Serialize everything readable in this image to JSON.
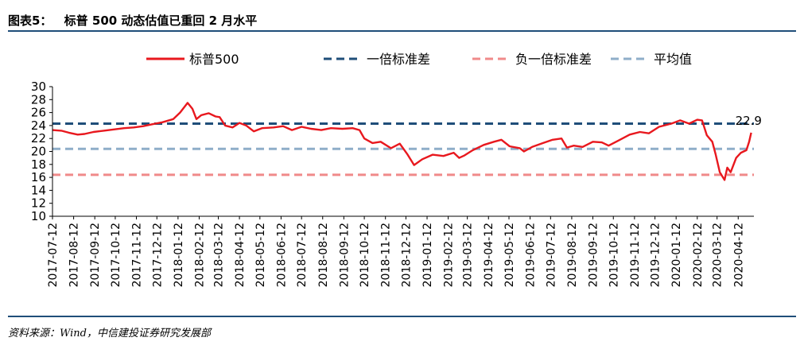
{
  "header": {
    "title_prefix": "图表5：",
    "title_text": "标普 500 动态估值已重回 2 月水平"
  },
  "footer": {
    "source": "资料来源：Wind，中信建投证券研究发展部"
  },
  "colors": {
    "rule": "#1f4e79",
    "sp500": "#e8181e",
    "plus_std": "#1f4e79",
    "minus_std": "#f08a8a",
    "mean": "#8faec9",
    "axis": "#000000"
  },
  "chart_data": {
    "type": "line",
    "legend_position": "top",
    "grid": false,
    "ylim": [
      10,
      30
    ],
    "yticks": [
      10,
      12,
      14,
      16,
      18,
      20,
      22,
      24,
      26,
      28,
      30
    ],
    "xlim": [
      "2017-07-12",
      "2020-05-05"
    ],
    "x_tick_labels": [
      "2017-07-12",
      "2017-08-12",
      "2017-09-12",
      "2017-10-12",
      "2017-11-12",
      "2017-12-12",
      "2018-01-12",
      "2018-02-12",
      "2018-03-12",
      "2018-04-12",
      "2018-05-12",
      "2018-06-12",
      "2018-07-12",
      "2018-08-12",
      "2018-09-12",
      "2018-10-12",
      "2018-11-12",
      "2018-12-12",
      "2019-01-12",
      "2019-02-12",
      "2019-03-12",
      "2019-04-12",
      "2019-05-12",
      "2019-06-12",
      "2019-07-12",
      "2019-08-12",
      "2019-09-12",
      "2019-10-12",
      "2019-11-12",
      "2019-12-12",
      "2020-01-12",
      "2020-02-12",
      "2020-03-12",
      "2020-04-12"
    ],
    "series": [
      {
        "name": "标普500",
        "style": "solid",
        "points": [
          [
            "2017-07-12",
            23.3
          ],
          [
            "2017-07-25",
            23.2
          ],
          [
            "2017-08-05",
            22.9
          ],
          [
            "2017-08-18",
            22.6
          ],
          [
            "2017-08-28",
            22.7
          ],
          [
            "2017-09-10",
            23.0
          ],
          [
            "2017-09-25",
            23.2
          ],
          [
            "2017-10-10",
            23.4
          ],
          [
            "2017-10-25",
            23.6
          ],
          [
            "2017-11-08",
            23.7
          ],
          [
            "2017-11-22",
            23.9
          ],
          [
            "2017-12-05",
            24.2
          ],
          [
            "2017-12-20",
            24.5
          ],
          [
            "2018-01-05",
            25.0
          ],
          [
            "2018-01-15",
            26.0
          ],
          [
            "2018-01-26",
            27.5
          ],
          [
            "2018-02-02",
            26.6
          ],
          [
            "2018-02-08",
            25.0
          ],
          [
            "2018-02-15",
            25.6
          ],
          [
            "2018-02-26",
            25.9
          ],
          [
            "2018-03-08",
            25.4
          ],
          [
            "2018-03-14",
            25.3
          ],
          [
            "2018-03-22",
            24.0
          ],
          [
            "2018-04-02",
            23.7
          ],
          [
            "2018-04-12",
            24.4
          ],
          [
            "2018-04-22",
            24.0
          ],
          [
            "2018-05-03",
            23.1
          ],
          [
            "2018-05-15",
            23.6
          ],
          [
            "2018-06-01",
            23.7
          ],
          [
            "2018-06-15",
            23.9
          ],
          [
            "2018-06-28",
            23.3
          ],
          [
            "2018-07-12",
            23.8
          ],
          [
            "2018-07-26",
            23.5
          ],
          [
            "2018-08-10",
            23.3
          ],
          [
            "2018-08-24",
            23.6
          ],
          [
            "2018-09-10",
            23.5
          ],
          [
            "2018-09-25",
            23.6
          ],
          [
            "2018-10-05",
            23.3
          ],
          [
            "2018-10-12",
            22.0
          ],
          [
            "2018-10-24",
            21.3
          ],
          [
            "2018-11-05",
            21.5
          ],
          [
            "2018-11-20",
            20.5
          ],
          [
            "2018-12-03",
            21.2
          ],
          [
            "2018-12-14",
            19.6
          ],
          [
            "2018-12-24",
            17.9
          ],
          [
            "2019-01-05",
            18.8
          ],
          [
            "2019-01-20",
            19.5
          ],
          [
            "2019-02-05",
            19.3
          ],
          [
            "2019-02-20",
            19.8
          ],
          [
            "2019-02-28",
            19.0
          ],
          [
            "2019-03-08",
            19.4
          ],
          [
            "2019-03-20",
            20.2
          ],
          [
            "2019-04-05",
            21.0
          ],
          [
            "2019-04-20",
            21.5
          ],
          [
            "2019-05-01",
            21.8
          ],
          [
            "2019-05-13",
            20.8
          ],
          [
            "2019-05-28",
            20.5
          ],
          [
            "2019-06-03",
            20.0
          ],
          [
            "2019-06-15",
            20.7
          ],
          [
            "2019-07-01",
            21.3
          ],
          [
            "2019-07-15",
            21.8
          ],
          [
            "2019-07-28",
            22.0
          ],
          [
            "2019-08-05",
            20.6
          ],
          [
            "2019-08-15",
            20.9
          ],
          [
            "2019-08-28",
            20.7
          ],
          [
            "2019-09-12",
            21.5
          ],
          [
            "2019-09-25",
            21.4
          ],
          [
            "2019-10-05",
            20.9
          ],
          [
            "2019-10-20",
            21.7
          ],
          [
            "2019-11-05",
            22.6
          ],
          [
            "2019-11-20",
            23.0
          ],
          [
            "2019-12-03",
            22.8
          ],
          [
            "2019-12-18",
            23.8
          ],
          [
            "2020-01-05",
            24.3
          ],
          [
            "2020-01-18",
            24.8
          ],
          [
            "2020-01-31",
            24.3
          ],
          [
            "2020-02-12",
            24.9
          ],
          [
            "2020-02-19",
            24.8
          ],
          [
            "2020-02-26",
            22.5
          ],
          [
            "2020-03-05",
            21.5
          ],
          [
            "2020-03-10",
            19.5
          ],
          [
            "2020-03-16",
            16.8
          ],
          [
            "2020-03-23",
            15.6
          ],
          [
            "2020-03-27",
            17.5
          ],
          [
            "2020-04-01",
            16.8
          ],
          [
            "2020-04-09",
            19.0
          ],
          [
            "2020-04-16",
            19.8
          ],
          [
            "2020-04-24",
            20.2
          ],
          [
            "2020-04-28",
            21.5
          ],
          [
            "2020-05-01",
            22.9
          ]
        ]
      },
      {
        "name": "一倍标准差",
        "style": "dashed",
        "constant": 24.3
      },
      {
        "name": "负一倍标准差",
        "style": "dashed",
        "constant": 16.4
      },
      {
        "name": "平均值",
        "style": "dashed",
        "constant": 20.4
      }
    ],
    "annotations": [
      {
        "text": "22.9",
        "x": "2020-05-01",
        "y": 22.9
      }
    ]
  }
}
